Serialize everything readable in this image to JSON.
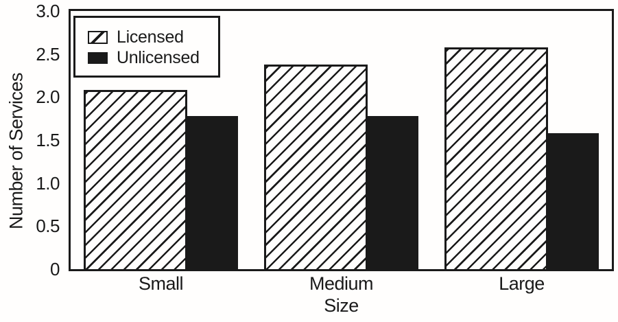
{
  "colors": {
    "ink": "#1a1a1a",
    "paper": "#fffefd"
  },
  "chart_data": {
    "type": "bar",
    "title": "",
    "xlabel": "Size",
    "ylabel": "Number of Services",
    "categories": [
      "Small",
      "Medium",
      "Large"
    ],
    "series": [
      {
        "name": "Licensed",
        "style": "hatched",
        "values": [
          2.08,
          2.38,
          2.58
        ]
      },
      {
        "name": "Unlicensed",
        "style": "solid",
        "values": [
          1.78,
          1.78,
          1.58
        ]
      }
    ],
    "ylim": [
      0,
      3.0
    ],
    "yticks": {
      "values": [
        0,
        0.5,
        1.0,
        1.5,
        2.0,
        2.5,
        3.0
      ],
      "labels": [
        "0",
        "0.5",
        "1.0",
        "1.5",
        "2.0",
        "2.5",
        "3.0"
      ]
    },
    "grid": false,
    "legend_position": "top-left",
    "hatch_direction": "forward-diagonal"
  }
}
